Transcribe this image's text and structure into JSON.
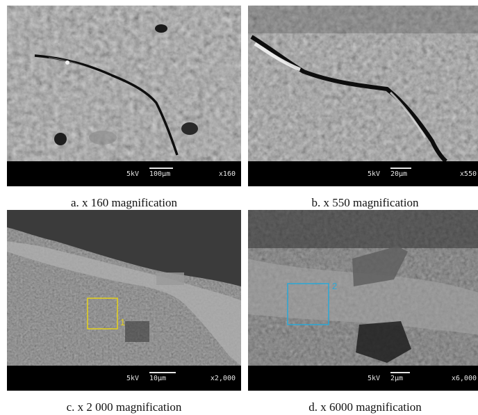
{
  "panels": [
    {
      "caption": "a. x 160 magnification",
      "kv": "5kV",
      "scale": "100µm",
      "mag": "x160"
    },
    {
      "caption": "b. x 550 magnification",
      "kv": "5kV",
      "scale": "20µm",
      "mag": "x550"
    },
    {
      "caption": "c. x 2 000 magnification",
      "kv": "5kV",
      "scale": "10µm",
      "mag": "x2,000",
      "box_label": "1",
      "box_color": "#e6d21a"
    },
    {
      "caption": "d. x 6000 magnification",
      "kv": "5kV",
      "scale": "2µm",
      "mag": "x6,000",
      "box_label": "2",
      "box_color": "#2aa7d6"
    }
  ]
}
